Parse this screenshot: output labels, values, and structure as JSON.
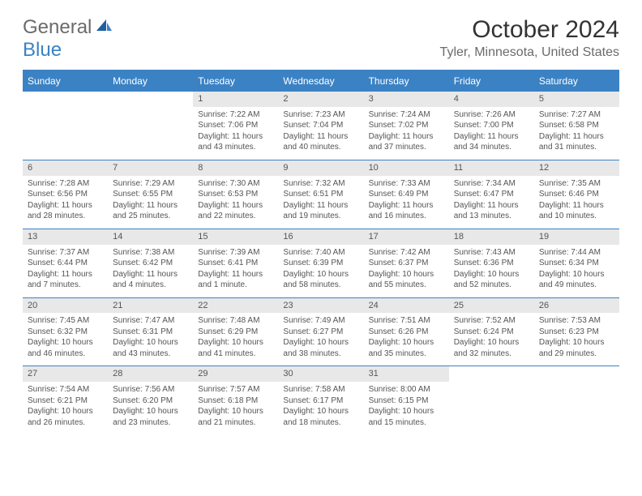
{
  "logo": {
    "part1": "General",
    "part2": "Blue"
  },
  "title": "October 2024",
  "location": "Tyler, Minnesota, United States",
  "header_bg": "#3b82c4",
  "weekdays": [
    "Sunday",
    "Monday",
    "Tuesday",
    "Wednesday",
    "Thursday",
    "Friday",
    "Saturday"
  ],
  "weeks": [
    [
      null,
      null,
      {
        "n": "1",
        "sr": "7:22 AM",
        "ss": "7:06 PM",
        "dl": "11 hours and 43 minutes."
      },
      {
        "n": "2",
        "sr": "7:23 AM",
        "ss": "7:04 PM",
        "dl": "11 hours and 40 minutes."
      },
      {
        "n": "3",
        "sr": "7:24 AM",
        "ss": "7:02 PM",
        "dl": "11 hours and 37 minutes."
      },
      {
        "n": "4",
        "sr": "7:26 AM",
        "ss": "7:00 PM",
        "dl": "11 hours and 34 minutes."
      },
      {
        "n": "5",
        "sr": "7:27 AM",
        "ss": "6:58 PM",
        "dl": "11 hours and 31 minutes."
      }
    ],
    [
      {
        "n": "6",
        "sr": "7:28 AM",
        "ss": "6:56 PM",
        "dl": "11 hours and 28 minutes."
      },
      {
        "n": "7",
        "sr": "7:29 AM",
        "ss": "6:55 PM",
        "dl": "11 hours and 25 minutes."
      },
      {
        "n": "8",
        "sr": "7:30 AM",
        "ss": "6:53 PM",
        "dl": "11 hours and 22 minutes."
      },
      {
        "n": "9",
        "sr": "7:32 AM",
        "ss": "6:51 PM",
        "dl": "11 hours and 19 minutes."
      },
      {
        "n": "10",
        "sr": "7:33 AM",
        "ss": "6:49 PM",
        "dl": "11 hours and 16 minutes."
      },
      {
        "n": "11",
        "sr": "7:34 AM",
        "ss": "6:47 PM",
        "dl": "11 hours and 13 minutes."
      },
      {
        "n": "12",
        "sr": "7:35 AM",
        "ss": "6:46 PM",
        "dl": "11 hours and 10 minutes."
      }
    ],
    [
      {
        "n": "13",
        "sr": "7:37 AM",
        "ss": "6:44 PM",
        "dl": "11 hours and 7 minutes."
      },
      {
        "n": "14",
        "sr": "7:38 AM",
        "ss": "6:42 PM",
        "dl": "11 hours and 4 minutes."
      },
      {
        "n": "15",
        "sr": "7:39 AM",
        "ss": "6:41 PM",
        "dl": "11 hours and 1 minute."
      },
      {
        "n": "16",
        "sr": "7:40 AM",
        "ss": "6:39 PM",
        "dl": "10 hours and 58 minutes."
      },
      {
        "n": "17",
        "sr": "7:42 AM",
        "ss": "6:37 PM",
        "dl": "10 hours and 55 minutes."
      },
      {
        "n": "18",
        "sr": "7:43 AM",
        "ss": "6:36 PM",
        "dl": "10 hours and 52 minutes."
      },
      {
        "n": "19",
        "sr": "7:44 AM",
        "ss": "6:34 PM",
        "dl": "10 hours and 49 minutes."
      }
    ],
    [
      {
        "n": "20",
        "sr": "7:45 AM",
        "ss": "6:32 PM",
        "dl": "10 hours and 46 minutes."
      },
      {
        "n": "21",
        "sr": "7:47 AM",
        "ss": "6:31 PM",
        "dl": "10 hours and 43 minutes."
      },
      {
        "n": "22",
        "sr": "7:48 AM",
        "ss": "6:29 PM",
        "dl": "10 hours and 41 minutes."
      },
      {
        "n": "23",
        "sr": "7:49 AM",
        "ss": "6:27 PM",
        "dl": "10 hours and 38 minutes."
      },
      {
        "n": "24",
        "sr": "7:51 AM",
        "ss": "6:26 PM",
        "dl": "10 hours and 35 minutes."
      },
      {
        "n": "25",
        "sr": "7:52 AM",
        "ss": "6:24 PM",
        "dl": "10 hours and 32 minutes."
      },
      {
        "n": "26",
        "sr": "7:53 AM",
        "ss": "6:23 PM",
        "dl": "10 hours and 29 minutes."
      }
    ],
    [
      {
        "n": "27",
        "sr": "7:54 AM",
        "ss": "6:21 PM",
        "dl": "10 hours and 26 minutes."
      },
      {
        "n": "28",
        "sr": "7:56 AM",
        "ss": "6:20 PM",
        "dl": "10 hours and 23 minutes."
      },
      {
        "n": "29",
        "sr": "7:57 AM",
        "ss": "6:18 PM",
        "dl": "10 hours and 21 minutes."
      },
      {
        "n": "30",
        "sr": "7:58 AM",
        "ss": "6:17 PM",
        "dl": "10 hours and 18 minutes."
      },
      {
        "n": "31",
        "sr": "8:00 AM",
        "ss": "6:15 PM",
        "dl": "10 hours and 15 minutes."
      },
      null,
      null
    ]
  ],
  "labels": {
    "sunrise": "Sunrise:",
    "sunset": "Sunset:",
    "daylight": "Daylight:"
  }
}
